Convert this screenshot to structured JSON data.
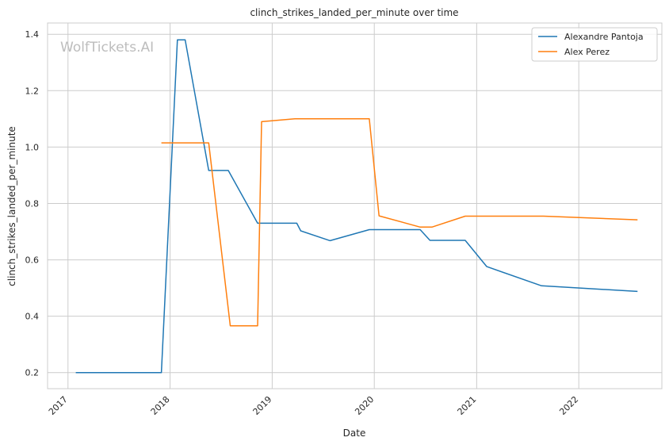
{
  "watermark": "WolfTickets.AI",
  "chart_data": {
    "type": "line",
    "title": "clinch_strikes_landed_per_minute over time",
    "xlabel": "Date",
    "ylabel": "clinch_strikes_landed_per_minute",
    "xlim": [
      "2016-10-20",
      "2022-10-25"
    ],
    "ylim": [
      0.143,
      1.44
    ],
    "x_ticks": [
      "2017",
      "2018",
      "2019",
      "2020",
      "2021",
      "2022"
    ],
    "x_tick_dates": [
      "2017-01-01",
      "2018-01-01",
      "2019-01-01",
      "2020-01-01",
      "2021-01-01",
      "2022-01-01"
    ],
    "y_ticks": [
      "0.2",
      "0.4",
      "0.6",
      "0.8",
      "1.0",
      "1.2",
      "1.4"
    ],
    "y_tick_values": [
      0.2,
      0.4,
      0.6,
      0.8,
      1.0,
      1.2,
      1.4
    ],
    "grid": true,
    "legend_position": "top-right",
    "series": [
      {
        "name": "Alexandre Pantoja",
        "color": "#1f77b4",
        "points": [
          {
            "x": "2017-01-29",
            "y": 0.2
          },
          {
            "x": "2017-12-01",
            "y": 0.2
          },
          {
            "x": "2018-01-27",
            "y": 1.38
          },
          {
            "x": "2018-02-24",
            "y": 1.38
          },
          {
            "x": "2018-05-19",
            "y": 0.917
          },
          {
            "x": "2018-07-28",
            "y": 0.917
          },
          {
            "x": "2018-11-10",
            "y": 0.73
          },
          {
            "x": "2019-03-30",
            "y": 0.73
          },
          {
            "x": "2019-04-13",
            "y": 0.703
          },
          {
            "x": "2019-07-27",
            "y": 0.668
          },
          {
            "x": "2019-12-14",
            "y": 0.707
          },
          {
            "x": "2020-06-13",
            "y": 0.707
          },
          {
            "x": "2020-07-18",
            "y": 0.669
          },
          {
            "x": "2020-11-21",
            "y": 0.669
          },
          {
            "x": "2021-02-06",
            "y": 0.576
          },
          {
            "x": "2021-08-21",
            "y": 0.508
          },
          {
            "x": "2022-07-30",
            "y": 0.488
          }
        ]
      },
      {
        "name": "Alex Perez",
        "color": "#ff7f0e",
        "points": [
          {
            "x": "2017-12-01",
            "y": 1.015
          },
          {
            "x": "2018-05-19",
            "y": 1.015
          },
          {
            "x": "2018-08-04",
            "y": 0.366
          },
          {
            "x": "2018-11-10",
            "y": 0.366
          },
          {
            "x": "2018-11-24",
            "y": 1.09
          },
          {
            "x": "2019-03-23",
            "y": 1.1
          },
          {
            "x": "2019-12-14",
            "y": 1.1
          },
          {
            "x": "2020-01-18",
            "y": 0.756
          },
          {
            "x": "2020-06-13",
            "y": 0.716
          },
          {
            "x": "2020-07-25",
            "y": 0.716
          },
          {
            "x": "2020-11-21",
            "y": 0.755
          },
          {
            "x": "2021-08-28",
            "y": 0.755
          },
          {
            "x": "2022-07-30",
            "y": 0.742
          }
        ]
      }
    ]
  }
}
